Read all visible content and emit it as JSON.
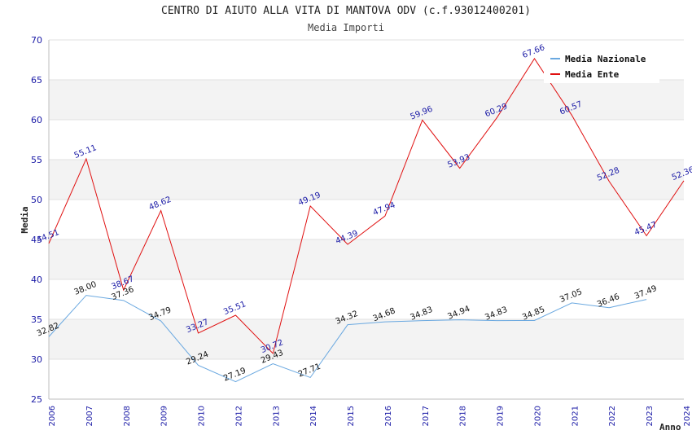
{
  "chart_data": {
    "type": "line",
    "title": "CENTRO DI AIUTO ALLA VITA DI MANTOVA ODV (c.f.93012400201)",
    "subtitle": "Media Importi",
    "xlabel": "Anno",
    "ylabel": "Media",
    "ylim": [
      25,
      70
    ],
    "yticks": [
      25,
      30,
      35,
      40,
      45,
      50,
      55,
      60,
      65,
      70
    ],
    "grid": "horizontal bands",
    "legend_position": "top-right",
    "categories": [
      "2006",
      "2007",
      "2008",
      "2009",
      "2010",
      "2012",
      "2013",
      "2014",
      "2015",
      "2016",
      "2017",
      "2018",
      "2019",
      "2020",
      "2021",
      "2022",
      "2023",
      "2024"
    ],
    "series": [
      {
        "name": "Media Nazionale",
        "color": "#6aa8e0",
        "label_color": "#111111",
        "values": [
          32.82,
          38.0,
          37.36,
          34.79,
          29.24,
          27.19,
          29.43,
          27.71,
          34.32,
          34.68,
          34.83,
          34.94,
          34.83,
          34.85,
          37.05,
          36.46,
          37.49,
          null
        ],
        "labels": [
          "32.82",
          "38.00",
          "37.36",
          "34.79",
          "29.24",
          "27.19",
          "29.43",
          "27.71",
          "34.32",
          "34.68",
          "34.83",
          "34.94",
          "34.83",
          "34.85",
          "37.05",
          "36.46",
          "37.49",
          ""
        ]
      },
      {
        "name": "Media Ente",
        "color": "#e01010",
        "label_color": "#1a1aa6",
        "values": [
          44.51,
          55.11,
          38.67,
          48.62,
          33.27,
          35.51,
          30.72,
          49.19,
          44.39,
          47.94,
          59.96,
          53.93,
          60.29,
          67.66,
          60.57,
          52.28,
          45.47,
          52.36
        ],
        "labels": [
          "44.51",
          "55.11",
          "38.67",
          "48.62",
          "33.27",
          "35.51",
          "30.72",
          "49.19",
          "44.39",
          "47.94",
          "59.96",
          "53.93",
          "60.29",
          "67.66",
          "60.57",
          "52.28",
          "45.47",
          "52.36"
        ]
      }
    ]
  }
}
